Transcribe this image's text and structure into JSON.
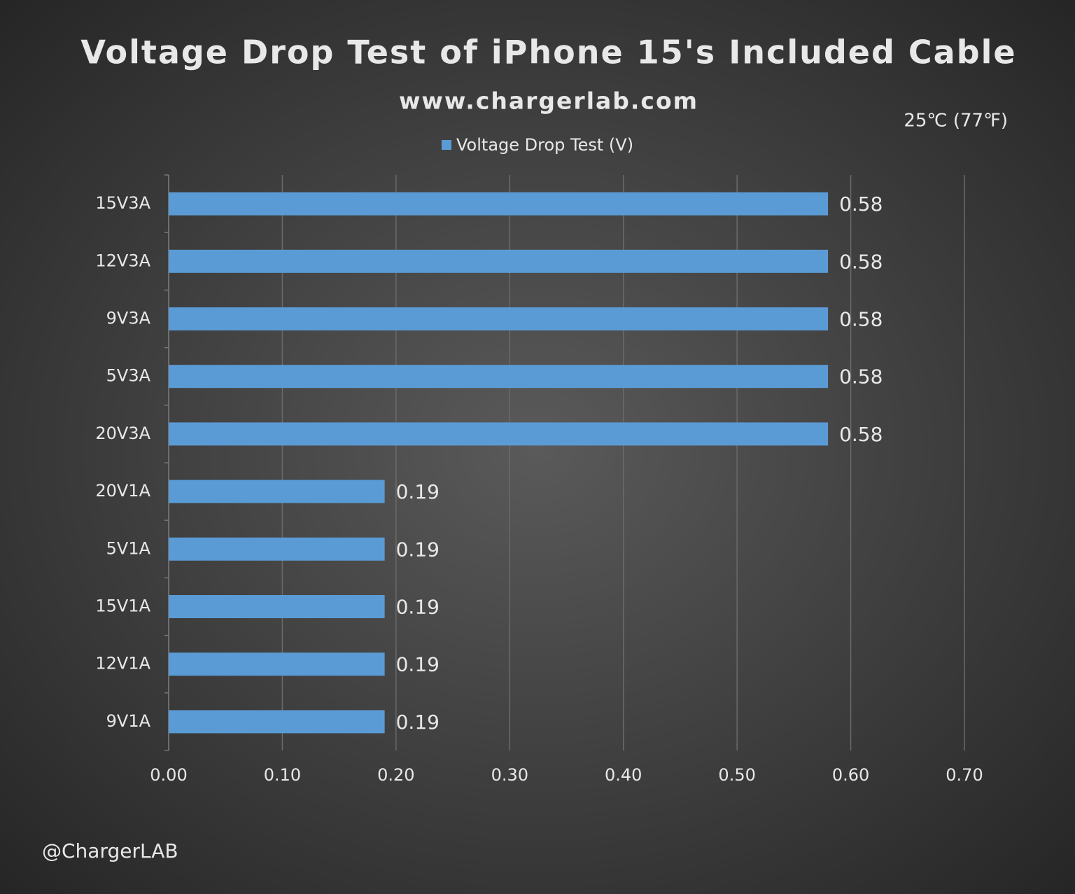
{
  "chart_data": {
    "type": "bar",
    "orientation": "horizontal",
    "title": "Voltage Drop Test of iPhone 15's Included Cable",
    "subtitle": "www.chargerlab.com",
    "annotations": [
      "25℃ (77℉)"
    ],
    "credit": "@ChargerLAB",
    "categories": [
      "15V3A",
      "12V3A",
      "9V3A",
      "5V3A",
      "20V3A",
      "20V1A",
      "5V1A",
      "15V1A",
      "12V1A",
      "9V1A"
    ],
    "series": [
      {
        "name": "Voltage Drop Test  (V)",
        "color": "#5b9bd5",
        "values": [
          0.58,
          0.58,
          0.58,
          0.58,
          0.58,
          0.19,
          0.19,
          0.19,
          0.19,
          0.19
        ]
      }
    ],
    "xlim": [
      0,
      0.7
    ],
    "xticks": [
      {
        "value": 0,
        "label": "0.00"
      },
      {
        "value": 0.1,
        "label": "0.10"
      },
      {
        "value": 0.2,
        "label": "0.20"
      },
      {
        "value": 0.3,
        "label": "0.30"
      },
      {
        "value": 0.4,
        "label": "0.40"
      },
      {
        "value": 0.5,
        "label": "0.50"
      },
      {
        "value": 0.6,
        "label": "0.60"
      },
      {
        "value": 0.7,
        "label": "0.70"
      }
    ],
    "grid": true,
    "legend": "top"
  }
}
